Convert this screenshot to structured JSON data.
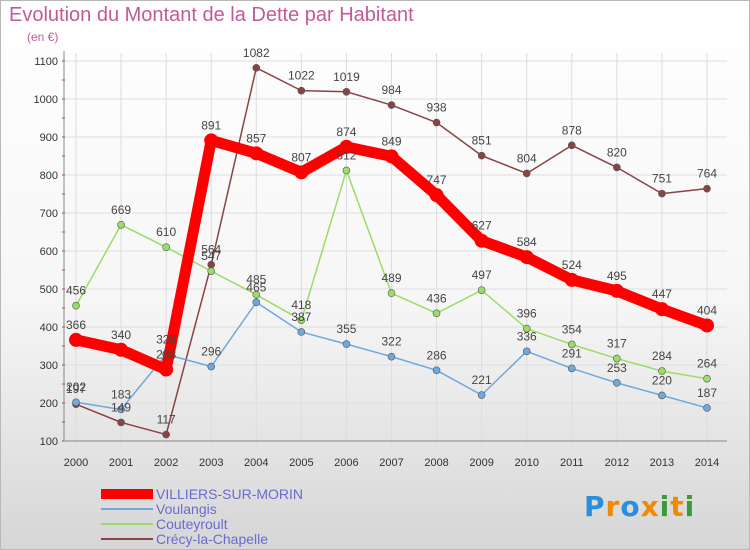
{
  "chart_data": {
    "type": "line",
    "title": "Evolution du Montant de la Dette par Habitant",
    "subtitle": "(en €)",
    "xlabel": "",
    "ylabel": "",
    "x": [
      "2000",
      "2001",
      "2002",
      "2003",
      "2004",
      "2005",
      "2006",
      "2007",
      "2008",
      "2009",
      "2010",
      "2011",
      "2012",
      "2013",
      "2014"
    ],
    "ylim": [
      100,
      1100
    ],
    "yticks": [
      100,
      200,
      300,
      400,
      500,
      600,
      700,
      800,
      900,
      1000,
      1100
    ],
    "grid": true,
    "legend_position": "bottom-left",
    "series": [
      {
        "name": "VILLIERS-SUR-MORIN",
        "color": "#ff0000",
        "values": [
          366,
          340,
          288,
          891,
          857,
          807,
          874,
          849,
          747,
          627,
          584,
          524,
          495,
          447,
          404
        ]
      },
      {
        "name": "Voulangis",
        "color": "#6fa8dc",
        "values": [
          202,
          183,
          328,
          296,
          465,
          387,
          355,
          322,
          286,
          221,
          336,
          291,
          253,
          220,
          187
        ]
      },
      {
        "name": "Couteyroult",
        "color": "#99dd66",
        "values": [
          456,
          669,
          610,
          547,
          485,
          418,
          812,
          489,
          436,
          497,
          396,
          354,
          317,
          284,
          264
        ]
      },
      {
        "name": "Crécy-la-Chapelle",
        "color": "#884444",
        "values": [
          197,
          149,
          117,
          564,
          1082,
          1022,
          1019,
          984,
          938,
          851,
          804,
          878,
          820,
          751,
          764
        ]
      }
    ]
  },
  "logo": {
    "letters": [
      "P",
      "r",
      "o",
      "x",
      "i",
      "t",
      "i"
    ],
    "colors": [
      "#2a8ee0",
      "#f08a00",
      "#2a8ee0",
      "#f08a00",
      "#3a9a3a",
      "#f08a00",
      "#3a9a3a"
    ]
  }
}
